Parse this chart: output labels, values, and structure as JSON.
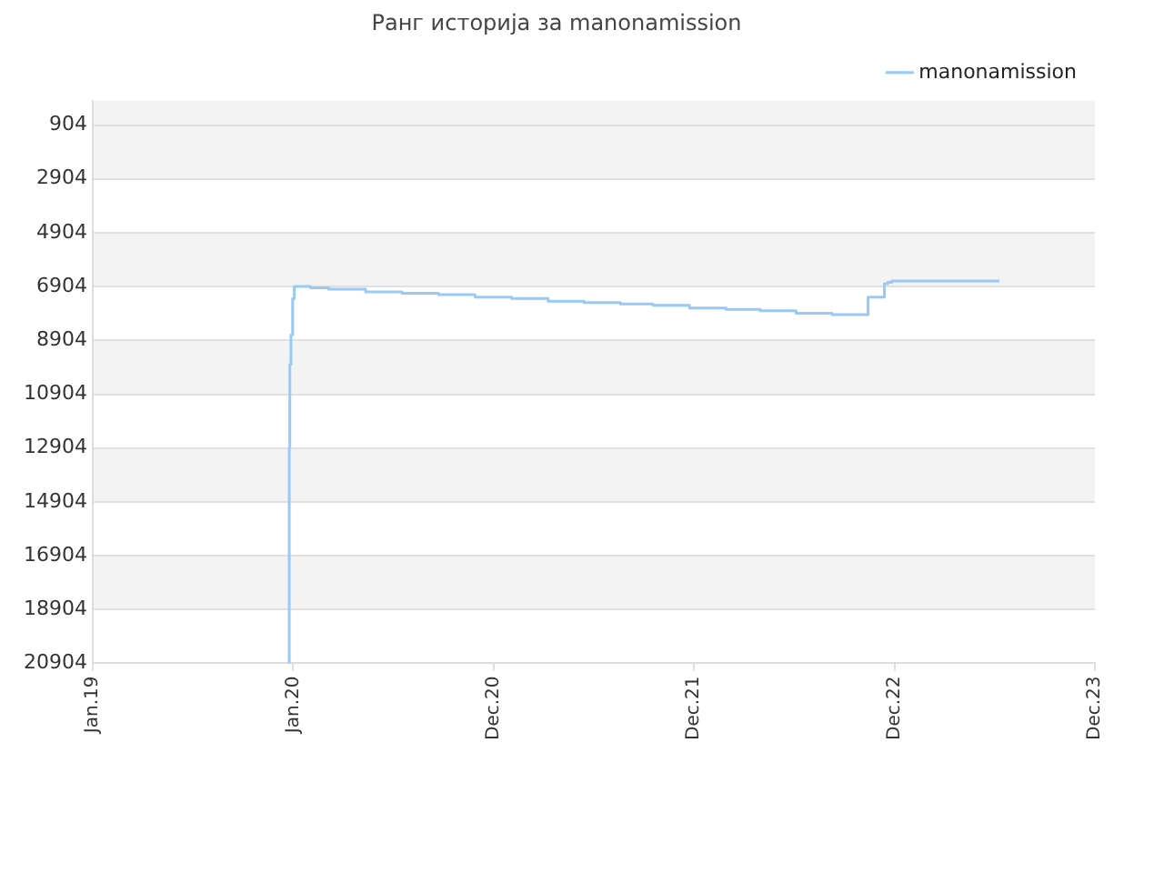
{
  "chart_data": {
    "type": "step",
    "title": "Ранг историја за manonamission",
    "x": [
      "2019-12-31",
      "2020-01-01",
      "2020-01-03",
      "2020-01-06",
      "2020-01-09",
      "2020-02-07",
      "2020-03-10",
      "2020-05-15",
      "2020-07-19",
      "2020-09-22",
      "2020-11-26",
      "2021-01-30",
      "2021-04-05",
      "2021-06-08",
      "2021-08-12",
      "2021-10-09",
      "2021-12-13",
      "2022-02-16",
      "2022-04-18",
      "2022-06-21",
      "2022-08-24",
      "2022-10-27",
      "2022-11-25",
      "2022-12-01",
      "2022-12-08",
      "2023-06-18"
    ],
    "series": [
      {
        "name": "manonamission",
        "color": "#99c9f5",
        "values": [
          20904,
          12900,
          9800,
          8700,
          7350,
          6900,
          6950,
          7000,
          7100,
          7150,
          7200,
          7300,
          7350,
          7450,
          7500,
          7550,
          7600,
          7700,
          7750,
          7800,
          7900,
          7950,
          7300,
          6800,
          6750,
          6700
        ]
      }
    ],
    "xlim": [
      "2019-01-15",
      "2023-12-05"
    ],
    "xticks": [
      {
        "value": "2019-01-15",
        "label": "Jan.19"
      },
      {
        "value": "2020-01-07",
        "label": "Jan.20"
      },
      {
        "value": "2020-12-29",
        "label": "Dec.20"
      },
      {
        "value": "2021-12-21",
        "label": "Dec.21"
      },
      {
        "value": "2022-12-13",
        "label": "Dec.22"
      },
      {
        "value": "2023-12-05",
        "label": "Dec.23"
      }
    ],
    "ylim": [
      20904,
      0
    ],
    "yticks": [
      904,
      2904,
      4904,
      6904,
      8904,
      10904,
      12904,
      14904,
      16904,
      18904,
      20904
    ],
    "grid": "y",
    "legend": "top right",
    "marker": "none",
    "line_style": "solid"
  }
}
